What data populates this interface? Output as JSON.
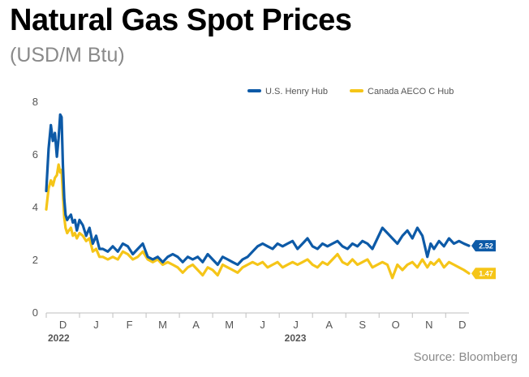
{
  "title": "Natural Gas Spot Prices",
  "subtitle": "(USD/M Btu)",
  "source": "Source: Bloomberg",
  "colors": {
    "henry": "#0d5aa7",
    "aeco": "#f5c518"
  },
  "chart_data": {
    "type": "line",
    "xlabel": "",
    "ylabel": "",
    "ylim": [
      0,
      8
    ],
    "yticks": [
      0,
      2,
      4,
      6,
      8
    ],
    "grid": false,
    "legend_position": "top-right",
    "x_ticks": [
      "D",
      "J",
      "F",
      "M",
      "A",
      "M",
      "J",
      "J",
      "A",
      "S",
      "O",
      "N",
      "D"
    ],
    "year_labels": [
      {
        "label": "2022",
        "at_tick": 0
      },
      {
        "label": "2023",
        "at_tick": 7
      }
    ],
    "end_labels": [
      "2.52",
      "1.47"
    ],
    "series": [
      {
        "name": "U.S. Henry Hub",
        "color": "#0d5aa7",
        "x": [
          -0.5,
          -0.43,
          -0.36,
          -0.3,
          -0.24,
          -0.18,
          -0.13,
          -0.08,
          -0.04,
          0.0,
          0.04,
          0.08,
          0.13,
          0.18,
          0.24,
          0.3,
          0.36,
          0.42,
          0.5,
          0.6,
          0.7,
          0.8,
          0.9,
          1.0,
          1.1,
          1.2,
          1.35,
          1.5,
          1.65,
          1.8,
          1.95,
          2.1,
          2.25,
          2.4,
          2.55,
          2.7,
          2.85,
          3.0,
          3.15,
          3.3,
          3.45,
          3.6,
          3.75,
          3.9,
          4.05,
          4.2,
          4.35,
          4.5,
          4.65,
          4.8,
          4.95,
          5.1,
          5.25,
          5.4,
          5.55,
          5.7,
          5.85,
          6.0,
          6.15,
          6.3,
          6.45,
          6.6,
          6.75,
          6.9,
          7.05,
          7.2,
          7.35,
          7.5,
          7.65,
          7.8,
          7.95,
          8.1,
          8.25,
          8.4,
          8.55,
          8.7,
          8.85,
          9.0,
          9.15,
          9.3,
          9.45,
          9.6,
          9.75,
          9.9,
          10.05,
          10.2,
          10.35,
          10.5,
          10.65,
          10.8,
          10.95,
          11.05,
          11.15,
          11.3,
          11.45,
          11.6,
          11.75,
          11.9,
          12.05,
          12.2
        ],
        "y": [
          4.6,
          6.2,
          7.1,
          6.5,
          6.8,
          5.9,
          6.6,
          7.5,
          7.4,
          5.6,
          4.3,
          3.7,
          3.5,
          3.6,
          3.7,
          3.4,
          3.5,
          3.1,
          3.5,
          3.3,
          2.9,
          3.2,
          2.6,
          2.9,
          2.4,
          2.4,
          2.3,
          2.5,
          2.3,
          2.6,
          2.5,
          2.2,
          2.4,
          2.6,
          2.1,
          2.0,
          2.1,
          1.9,
          2.1,
          2.2,
          2.1,
          1.9,
          2.1,
          2.0,
          2.1,
          1.9,
          2.2,
          2.0,
          1.8,
          2.1,
          2.0,
          1.9,
          1.8,
          2.0,
          2.1,
          2.3,
          2.5,
          2.6,
          2.5,
          2.4,
          2.6,
          2.5,
          2.6,
          2.7,
          2.4,
          2.6,
          2.8,
          2.5,
          2.4,
          2.6,
          2.5,
          2.6,
          2.7,
          2.5,
          2.4,
          2.6,
          2.5,
          2.7,
          2.6,
          2.4,
          2.8,
          3.2,
          3.0,
          2.8,
          2.6,
          2.9,
          3.1,
          2.8,
          3.2,
          2.9,
          2.1,
          2.6,
          2.4,
          2.7,
          2.5,
          2.8,
          2.6,
          2.7,
          2.6,
          2.52
        ]
      },
      {
        "name": "Canada AECO C Hub",
        "color": "#f5c518",
        "x": [
          -0.5,
          -0.43,
          -0.36,
          -0.3,
          -0.24,
          -0.18,
          -0.13,
          -0.08,
          -0.04,
          0.0,
          0.04,
          0.08,
          0.13,
          0.18,
          0.24,
          0.3,
          0.36,
          0.42,
          0.5,
          0.6,
          0.7,
          0.8,
          0.9,
          1.0,
          1.1,
          1.2,
          1.35,
          1.5,
          1.65,
          1.8,
          1.95,
          2.1,
          2.25,
          2.4,
          2.55,
          2.7,
          2.85,
          3.0,
          3.15,
          3.3,
          3.45,
          3.6,
          3.75,
          3.9,
          4.05,
          4.2,
          4.35,
          4.5,
          4.65,
          4.8,
          4.95,
          5.1,
          5.25,
          5.4,
          5.55,
          5.7,
          5.85,
          6.0,
          6.15,
          6.3,
          6.45,
          6.6,
          6.75,
          6.9,
          7.05,
          7.2,
          7.35,
          7.5,
          7.65,
          7.8,
          7.95,
          8.1,
          8.25,
          8.4,
          8.55,
          8.7,
          8.85,
          9.0,
          9.15,
          9.3,
          9.45,
          9.6,
          9.75,
          9.9,
          10.05,
          10.2,
          10.35,
          10.5,
          10.65,
          10.8,
          10.95,
          11.05,
          11.15,
          11.3,
          11.45,
          11.6,
          11.75,
          11.9,
          12.05,
          12.2
        ],
        "y": [
          3.9,
          4.7,
          5.0,
          4.8,
          5.1,
          5.2,
          5.6,
          5.3,
          5.4,
          4.5,
          3.6,
          3.2,
          3.0,
          3.1,
          3.2,
          2.9,
          3.0,
          2.8,
          3.0,
          2.9,
          2.7,
          2.8,
          2.3,
          2.4,
          2.1,
          2.1,
          2.0,
          2.1,
          2.0,
          2.3,
          2.2,
          2.0,
          2.1,
          2.3,
          2.0,
          1.9,
          2.0,
          1.8,
          1.9,
          1.8,
          1.7,
          1.5,
          1.7,
          1.8,
          1.6,
          1.4,
          1.7,
          1.6,
          1.4,
          1.8,
          1.7,
          1.6,
          1.5,
          1.7,
          1.8,
          1.9,
          1.8,
          1.9,
          1.7,
          1.8,
          1.9,
          1.7,
          1.8,
          1.9,
          1.8,
          1.9,
          2.0,
          1.8,
          1.7,
          1.9,
          1.8,
          2.0,
          2.2,
          1.9,
          1.8,
          2.0,
          1.8,
          1.9,
          2.0,
          1.7,
          1.8,
          1.9,
          1.8,
          1.3,
          1.8,
          1.6,
          1.8,
          1.9,
          1.7,
          2.0,
          1.7,
          1.9,
          1.8,
          2.0,
          1.7,
          1.9,
          1.8,
          1.7,
          1.6,
          1.47
        ]
      }
    ]
  }
}
